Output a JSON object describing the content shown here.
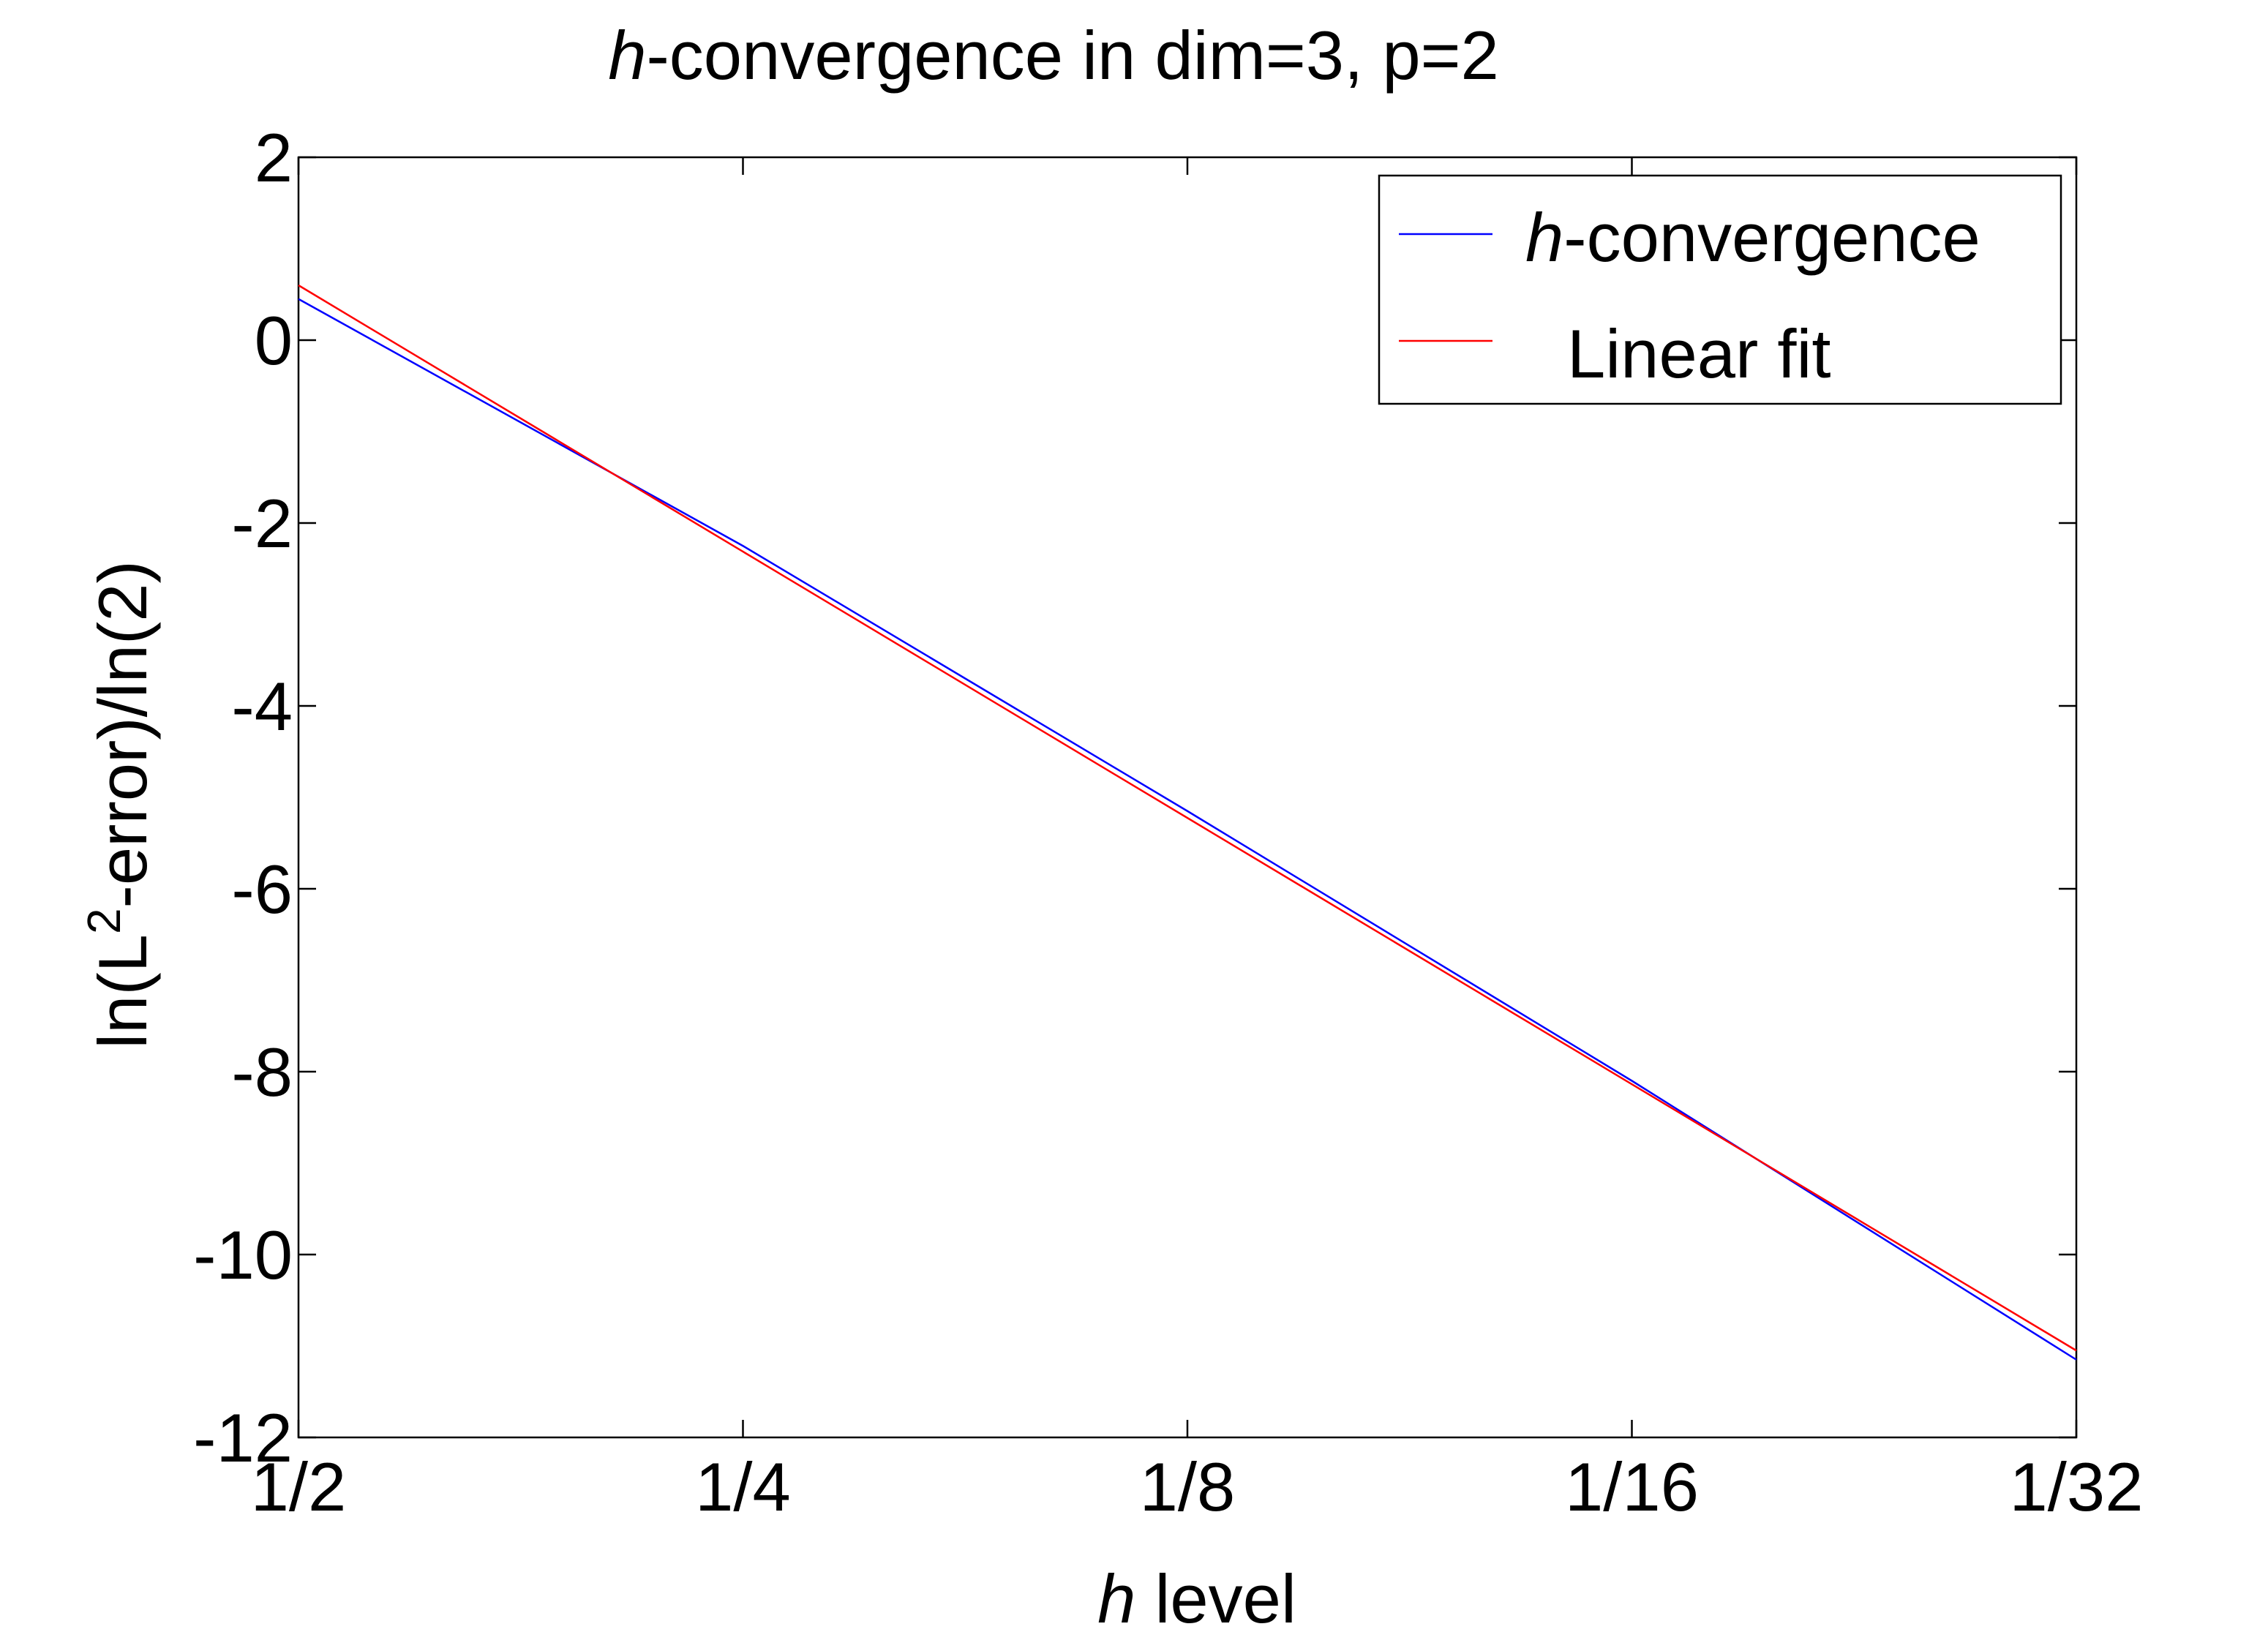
{
  "chart_data": {
    "type": "line",
    "title": {
      "italic": "h",
      "rest": "-convergence in dim=3, p=2"
    },
    "xlabel": {
      "italic": "h",
      "rest": " level"
    },
    "ylabel": {
      "before": "ln(L",
      "sup": "2",
      "after": "-error)/ln(2)"
    },
    "x_ticks": [
      {
        "value": 1,
        "label": "1/2"
      },
      {
        "value": 2,
        "label": "1/4"
      },
      {
        "value": 3,
        "label": "1/8"
      },
      {
        "value": 4,
        "label": "1/16"
      },
      {
        "value": 5,
        "label": "1/32"
      }
    ],
    "y_ticks": [
      2,
      0,
      -2,
      -4,
      -6,
      -8,
      -10,
      -12
    ],
    "xlim": [
      1,
      5
    ],
    "ylim": [
      -12,
      2
    ],
    "grid": false,
    "legend_position": "top-right",
    "series": [
      {
        "name_italic": "h",
        "name": "-convergence",
        "color": "#0000ff",
        "x": [
          1,
          2,
          3,
          4,
          5
        ],
        "y": [
          0.45,
          -2.25,
          -5.15,
          -8.1,
          -11.15
        ]
      },
      {
        "name_italic": "",
        "name": "Linear fit",
        "color": "#ff0000",
        "x": [
          1,
          5
        ],
        "y": [
          0.6,
          -11.05
        ]
      }
    ]
  }
}
